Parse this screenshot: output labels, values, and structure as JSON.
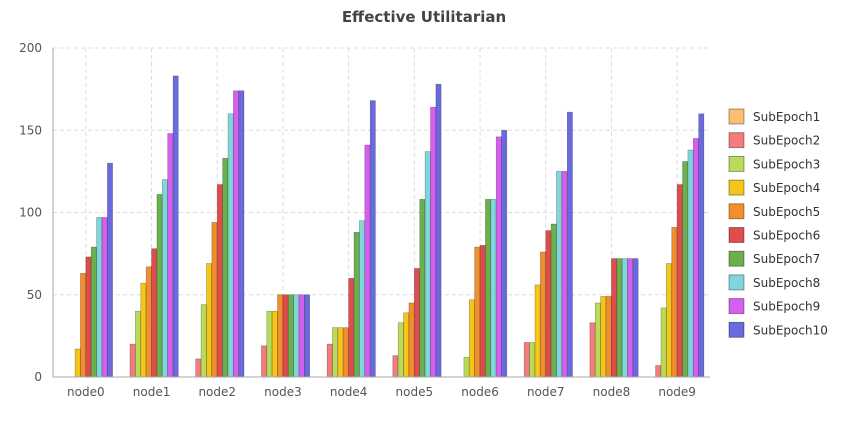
{
  "chart_data": {
    "type": "bar",
    "title": "Effective Utilitarian",
    "xlabel": "",
    "ylabel": "",
    "ylim": [
      0,
      200
    ],
    "yticks": [
      0,
      50,
      100,
      150,
      200
    ],
    "grid": true,
    "legend_position": "right",
    "categories": [
      "node0",
      "node1",
      "node2",
      "node3",
      "node4",
      "node5",
      "node6",
      "node7",
      "node8",
      "node9"
    ],
    "series": [
      {
        "name": "SubEpoch1",
        "color": "#fdbf6f",
        "values": [
          0,
          0,
          0,
          0,
          0,
          0,
          0,
          0,
          0,
          0
        ]
      },
      {
        "name": "SubEpoch2",
        "color": "#f47c7c",
        "values": [
          0,
          20,
          11,
          19,
          20,
          13,
          0,
          21,
          33,
          7
        ]
      },
      {
        "name": "SubEpoch3",
        "color": "#b8dc5a",
        "values": [
          0,
          40,
          44,
          40,
          30,
          33,
          12,
          21,
          45,
          42
        ]
      },
      {
        "name": "SubEpoch4",
        "color": "#f5c518",
        "values": [
          17,
          57,
          69,
          40,
          30,
          39,
          47,
          56,
          49,
          69
        ]
      },
      {
        "name": "SubEpoch5",
        "color": "#f28e2b",
        "values": [
          63,
          67,
          94,
          50,
          30,
          45,
          79,
          76,
          49,
          91
        ]
      },
      {
        "name": "SubEpoch6",
        "color": "#e04b4b",
        "values": [
          73,
          78,
          117,
          50,
          60,
          66,
          80,
          89,
          72,
          117
        ]
      },
      {
        "name": "SubEpoch7",
        "color": "#6ab04c",
        "values": [
          79,
          111,
          133,
          50,
          88,
          108,
          108,
          93,
          72,
          131
        ]
      },
      {
        "name": "SubEpoch8",
        "color": "#7fd6dc",
        "values": [
          97,
          120,
          160,
          50,
          95,
          137,
          108,
          125,
          72,
          138
        ]
      },
      {
        "name": "SubEpoch9",
        "color": "#d65ef0",
        "values": [
          97,
          148,
          174,
          50,
          141,
          164,
          146,
          125,
          72,
          145
        ]
      },
      {
        "name": "SubEpoch10",
        "color": "#6a6ae0",
        "values": [
          130,
          183,
          174,
          50,
          168,
          178,
          150,
          161,
          72,
          160
        ]
      }
    ]
  }
}
